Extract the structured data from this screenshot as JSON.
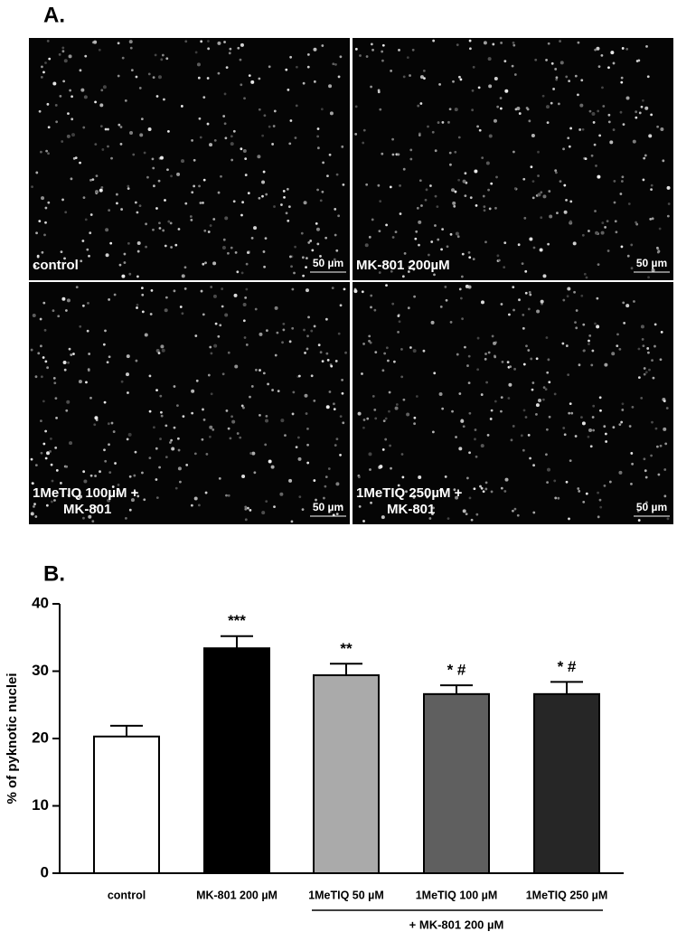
{
  "panel_a": {
    "label": "A.",
    "images": [
      {
        "caption": [
          "control"
        ],
        "scale_bar": "50 µm"
      },
      {
        "caption": [
          "MK-801 200µM"
        ],
        "scale_bar": "50 µm"
      },
      {
        "caption": [
          "1MeTIQ 100µM +",
          "MK-801"
        ],
        "scale_bar": "50 µm"
      },
      {
        "caption": [
          "1MeTIQ 250µM +",
          "MK-801"
        ],
        "scale_bar": "50 µm"
      }
    ]
  },
  "chart_data": {
    "type": "bar",
    "panel_label": "B.",
    "y_label": "% of pyknotic nuclei",
    "categories": [
      "control",
      "MK-801  200 µM",
      "1MeTIQ 50 µM",
      "1MeTIQ 100 µM",
      "1MeTIQ 250 µM"
    ],
    "values": [
      20.3,
      33.4,
      29.4,
      26.6,
      26.6
    ],
    "errors": [
      1.6,
      1.8,
      1.7,
      1.3,
      1.8
    ],
    "colors": [
      "#ffffff",
      "#000000",
      "#aaaaaa",
      "#5f5f5f",
      "#262626"
    ],
    "annotations": [
      null,
      "***",
      "**",
      "* #",
      "* #"
    ],
    "group_label": "+ MK-801 200 µM",
    "ylim": [
      0,
      40
    ],
    "yticks": [
      0,
      10,
      20,
      30,
      40
    ]
  }
}
